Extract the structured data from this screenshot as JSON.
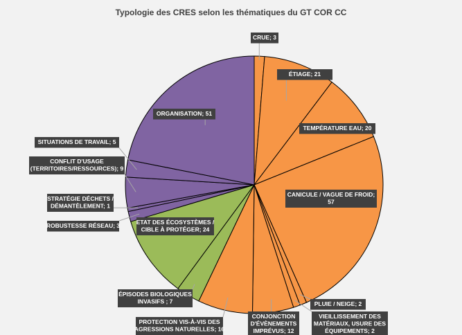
{
  "chart_data": {
    "type": "pie",
    "title": "Typologie des CRES selon les thématiques du GT COR CC",
    "slices": [
      {
        "label": "CRUE",
        "value": 3,
        "color": "#f79646",
        "lines": [
          "CRUE; 3"
        ]
      },
      {
        "label": "ÉTIAGE",
        "value": 21,
        "color": "#f79646",
        "lines": [
          "ÉTIAGE; 21"
        ]
      },
      {
        "label": "TEMPÉRATURE EAU",
        "value": 20,
        "color": "#f79646",
        "lines": [
          "TEMPÉRATURE EAU; 20"
        ]
      },
      {
        "label": "CANICULE / VAGUE DE FROID",
        "value": 57,
        "color": "#f79646",
        "lines": [
          "CANICULE / VAGUE DE FROID;",
          "57"
        ]
      },
      {
        "label": "PLUIE / NEIGE",
        "value": 2,
        "color": "#f79646",
        "lines": [
          "PLUIE / NEIGE; 2"
        ]
      },
      {
        "label": "VIEILLISSEMENT DES MATÉRIAUX, USURE DES ÉQUIPEMENTS",
        "value": 2,
        "color": "#f79646",
        "lines": [
          "VIEILLISSEMENT DES",
          "MATÉRIAUX, USURE DES",
          "ÉQUIPEMENTS; 2"
        ]
      },
      {
        "label": "CONJONCTION D'ÉVÈNEMENTS IMPRÉVUS",
        "value": 12,
        "color": "#f79646",
        "lines": [
          "CONJONCTION",
          "D'ÉVÈNEMENTS",
          "IMPRÉVUS; 12"
        ]
      },
      {
        "label": "PROTECTION VIS-À-VIS DES AGRESSIONS NATURELLES",
        "value": 16,
        "color": "#f79646",
        "lines": [
          "PROTECTION VIS-À-VIS DES",
          "AGRESSIONS NATURELLES; 16"
        ]
      },
      {
        "label": "ÉPISODES BIOLOGIQUES INVASIFS",
        "value": 7,
        "color": "#9bbb59",
        "lines": [
          "ÉPISODES BIOLOGIQUES",
          "INVASIFS ; 7"
        ]
      },
      {
        "label": "ETAT DES ÉCOSYSTÈMES / CIBLE À PROTÉGER",
        "value": 24,
        "color": "#9bbb59",
        "lines": [
          "ETAT DES ÉCOSYSTÈMES /",
          "CIBLE À PROTÉGER; 24"
        ]
      },
      {
        "label": "ROBUSTESSE RÉSEAU",
        "value": 3,
        "color": "#8064a2",
        "lines": [
          "ROBUSTESSE RÉSEAU; 3"
        ]
      },
      {
        "label": "STRATÉGIE DÉCHETS / DÉMANTÈLEMENT",
        "value": 1,
        "color": "#8064a2",
        "lines": [
          "STRATÉGIE DÉCHETS /",
          "DÉMANTÈLEMENT; 1"
        ]
      },
      {
        "label": "CONFLIT D'USAGE (TERRITOIRES/RESSOURCES)",
        "value": 9,
        "color": "#8064a2",
        "lines": [
          "CONFLIT D'USAGE",
          "(TERRITOIRES/RESSOURCES); 9"
        ]
      },
      {
        "label": "SITUATIONS DE TRAVAIL",
        "value": 5,
        "color": "#8064a2",
        "lines": [
          "SITUATIONS DE TRAVAIL; 5"
        ]
      },
      {
        "label": "ORGANISATION",
        "value": 51,
        "color": "#8064a2",
        "lines": [
          "ORGANISATION; 51"
        ]
      }
    ]
  }
}
